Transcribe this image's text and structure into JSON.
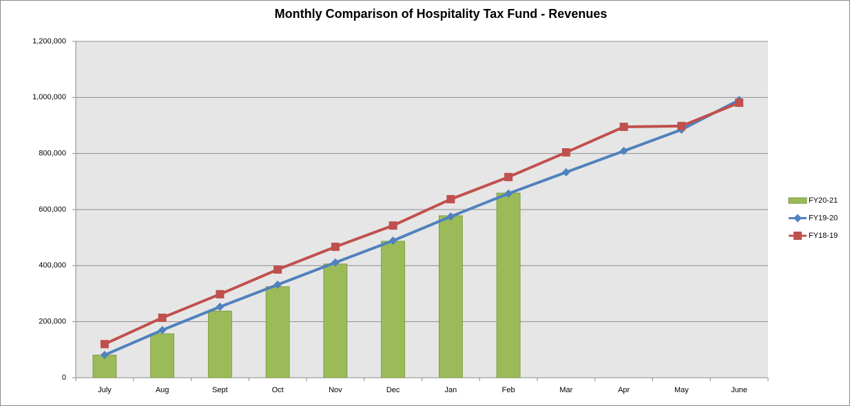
{
  "chart_data": {
    "type": "combo",
    "title": "Monthly Comparison of Hospitality Tax Fund - Revenues",
    "categories": [
      "July",
      "Aug",
      "Sept",
      "Oct",
      "Nov",
      "Dec",
      "Jan",
      "Feb",
      "Mar",
      "Apr",
      "May",
      "June"
    ],
    "series": [
      {
        "name": "FY20-21",
        "type": "bar",
        "color": "#9bbb59",
        "values": [
          81000,
          157000,
          238000,
          325000,
          406000,
          487000,
          578000,
          659000,
          null,
          null,
          null,
          null
        ]
      },
      {
        "name": "FY19-20",
        "type": "line",
        "marker": "diamond",
        "color": "#4f81bd",
        "values": [
          81000,
          170000,
          253000,
          332000,
          411000,
          489000,
          575000,
          657000,
          733000,
          809000,
          885000,
          991000
        ]
      },
      {
        "name": "FY18-19",
        "type": "line",
        "marker": "square",
        "color": "#c0504d",
        "values": [
          120000,
          214000,
          298000,
          386000,
          467000,
          543000,
          637000,
          716000,
          804000,
          895000,
          898000,
          981000
        ]
      }
    ],
    "ylim": [
      0,
      1200000
    ],
    "yticks": [
      0,
      {
        "value": 200000,
        "label": "200,000"
      },
      {
        "value": 400000,
        "label": "400,000"
      },
      {
        "value": 600000,
        "label": "600,000"
      },
      {
        "value": 800000,
        "label": "800,000"
      },
      {
        "value": 1000000,
        "label": "1,000,000"
      },
      {
        "value": 1200000,
        "label": "1,200,000"
      }
    ],
    "grid": true,
    "legend": "right"
  }
}
